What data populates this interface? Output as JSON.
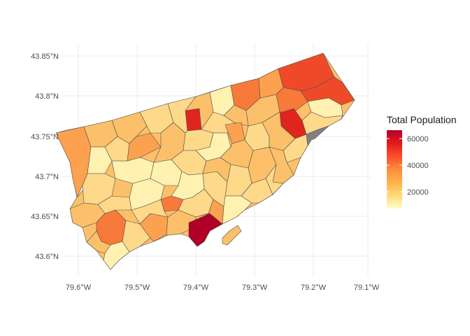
{
  "map": {
    "axes": {
      "y_ticks": [
        "43.85°N",
        "43.8°N",
        "43.75°N",
        "43.7°N",
        "43.65°N",
        "43.6°N"
      ],
      "x_ticks": [
        "79.6°W",
        "79.5°W",
        "79.4°W",
        "79.3°W",
        "79.2°W",
        "79.1°W"
      ]
    },
    "legend": {
      "title": "Total Population",
      "ticks": [
        "60000",
        "40000",
        "20000"
      ],
      "scale": [
        "#ffffcc",
        "#fed976",
        "#feb24c",
        "#fd8d3c",
        "#fc4e2a",
        "#e31a1c",
        "#b10026"
      ],
      "na_color": "#808080"
    },
    "colors": {
      "pale": "#fff2b0",
      "light": "#fed98a",
      "mid": "#fdc06a",
      "orange": "#fca14f",
      "deep_orange": "#f77a3a",
      "red_orange": "#ee4a2a",
      "red": "#e0241e",
      "dark_red": "#b10026",
      "na": "#808080"
    }
  }
}
